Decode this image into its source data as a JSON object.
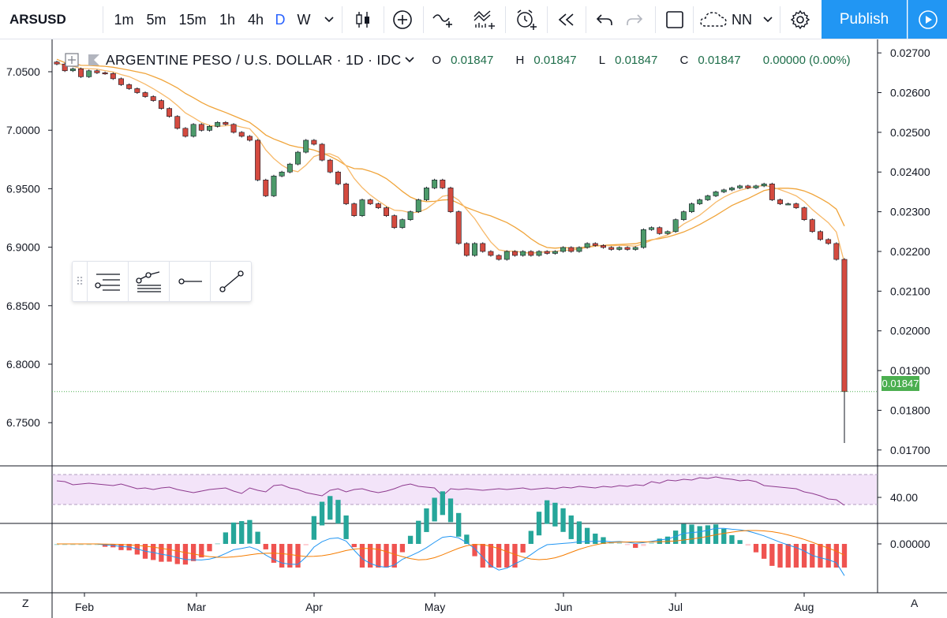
{
  "toolbar": {
    "symbol": "ARSUSD",
    "intervals": [
      "1m",
      "5m",
      "15m",
      "1h",
      "4h",
      "D",
      "W"
    ],
    "active_interval": "D",
    "publish_label": "Publish",
    "template_label": "NN",
    "icons": [
      "chevron-down-icon",
      "candles-icon",
      "add-icon",
      "compare-icon",
      "indicators-icon",
      "alert-icon",
      "replay-icon",
      "undo-icon",
      "redo-icon",
      "layout-icon",
      "cloud-icon",
      "settings-icon",
      "play-icon"
    ]
  },
  "legend": {
    "title": "ARGENTINE PESO / U.S. DOLLAR · 1D · IDC",
    "open_label": "O",
    "open": "0.01847",
    "high_label": "H",
    "high": "0.01847",
    "low_label": "L",
    "low": "0.01847",
    "close_label": "C",
    "close": "0.01847",
    "change": "0.00000 (0.00%)"
  },
  "drawing_toolbar": {
    "tools": [
      "horizontal-lines-tool-icon",
      "path-tool-icon",
      "horizontal-ray-tool-icon",
      "trend-line-tool-icon"
    ]
  },
  "colors": {
    "up": "#4c9a6a",
    "down": "#d44a3f",
    "ma_fast": "#f0a43a",
    "ma_slow": "#f7b96a",
    "rsi_line": "#8e3a8e",
    "rsi_band": "#f3e4f9",
    "macd_line": "#2196f3",
    "signal_line": "#f57c00",
    "price_tag": "#4caf50",
    "accent": "#2196f3"
  },
  "bottom": {
    "left_button": "Z",
    "right_button": "A"
  },
  "chart_data": {
    "type": "candlestick",
    "title": "ARGENTINE PESO / U.S. DOLLAR",
    "left_axis_ticks": [
      "7.0500",
      "7.0000",
      "6.9500",
      "6.9000",
      "6.8500",
      "6.8000",
      "6.7500"
    ],
    "right_axis_ticks": [
      "0.02700",
      "0.02600",
      "0.02500",
      "0.02400",
      "0.02300",
      "0.02200",
      "0.02100",
      "0.02000",
      "0.01900",
      "0.01800",
      "0.01700"
    ],
    "ylim_right": [
      0.0166,
      0.0273
    ],
    "x_ticks": [
      "Feb",
      "Mar",
      "Apr",
      "May",
      "Jun",
      "Jul",
      "Aug"
    ],
    "last_price": "0.01847",
    "rsi": {
      "tick_label": "40.00",
      "values": [
        61,
        60,
        56,
        57,
        58,
        57,
        56,
        55,
        57,
        54,
        51,
        52,
        50,
        52,
        53,
        50,
        48,
        46,
        48,
        50,
        51,
        52,
        48,
        45,
        52,
        49,
        47,
        55,
        56,
        52,
        50,
        46,
        44,
        42,
        49,
        51,
        47,
        50,
        51,
        48,
        46,
        48,
        51,
        55,
        57,
        54,
        53,
        52,
        42,
        51,
        50,
        51,
        50,
        49,
        50,
        51,
        50,
        51,
        52,
        50,
        51,
        52,
        51,
        53,
        52,
        54,
        53,
        52,
        54,
        53,
        55,
        54,
        56,
        55,
        60,
        58,
        62,
        61,
        63,
        62,
        65,
        64,
        66,
        64,
        63,
        61,
        62,
        60,
        55,
        54,
        53,
        52,
        51,
        47,
        45,
        42,
        38,
        37,
        30
      ]
    },
    "macd": {
      "tick_label": "0.00000"
    },
    "series": [
      {
        "name": "ARSUSD",
        "close": [
          0.02672,
          0.02655,
          0.0266,
          0.0264,
          0.02655,
          0.0265,
          0.02648,
          0.02635,
          0.0262,
          0.0261,
          0.026,
          0.0259,
          0.0258,
          0.0256,
          0.0254,
          0.0251,
          0.0249,
          0.0252,
          0.02505,
          0.02515,
          0.02525,
          0.0252,
          0.025,
          0.0249,
          0.0248,
          0.0238,
          0.0234,
          0.0239,
          0.024,
          0.0242,
          0.0245,
          0.0248,
          0.0247,
          0.0243,
          0.024,
          0.0237,
          0.0232,
          0.0229,
          0.0233,
          0.0232,
          0.0231,
          0.0229,
          0.0226,
          0.0228,
          0.023,
          0.0233,
          0.0236,
          0.0238,
          0.0236,
          0.023,
          0.0222,
          0.0219,
          0.0222,
          0.022,
          0.0219,
          0.0218,
          0.022,
          0.0219,
          0.022,
          0.0219,
          0.022,
          0.02195,
          0.022,
          0.0221,
          0.022,
          0.0221,
          0.0222,
          0.02215,
          0.0221,
          0.02205,
          0.0221,
          0.02205,
          0.0221,
          0.02255,
          0.0226,
          0.02245,
          0.0225,
          0.0228,
          0.023,
          0.0232,
          0.0233,
          0.0234,
          0.0235,
          0.02355,
          0.0236,
          0.02365,
          0.0236,
          0.02365,
          0.0237,
          0.0233,
          0.0232,
          0.0232,
          0.0231,
          0.0228,
          0.0225,
          0.0223,
          0.0222,
          0.0218,
          0.01847
        ]
      }
    ]
  }
}
